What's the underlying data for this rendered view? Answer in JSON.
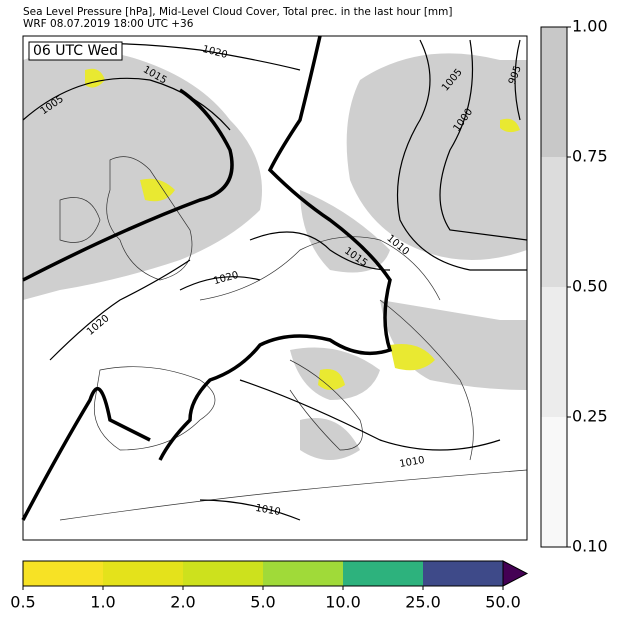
{
  "header": {
    "line1": "Sea Level Pressure [hPa], Mid-Level Cloud Cover, Total prec. in the last hour [mm]",
    "line2": "WRF 08.07.2019 18:00 UTC +36"
  },
  "map": {
    "time_label": "06 UTC Wed",
    "contour_labels": [
      "1020",
      "1015",
      "1005",
      "1005",
      "1000",
      "995",
      "1010",
      "1015",
      "1020",
      "1020",
      "1010",
      "1010"
    ]
  },
  "cloud_colorbar": {
    "ticks": [
      "1.00",
      "0.75",
      "0.50",
      "0.25",
      "0.10"
    ],
    "colors": [
      "#c8c8c8",
      "#dcdcdc",
      "#ececec",
      "#f8f8f8"
    ]
  },
  "precip_colorbar": {
    "ticks": [
      "0.5",
      "1.0",
      "2.0",
      "5.0",
      "10.0",
      "25.0",
      "50.0"
    ],
    "colors": [
      "#f7e225",
      "#e4e21b",
      "#cde11d",
      "#a0da39",
      "#2db27d",
      "#3e4a89",
      "#440154"
    ]
  }
}
